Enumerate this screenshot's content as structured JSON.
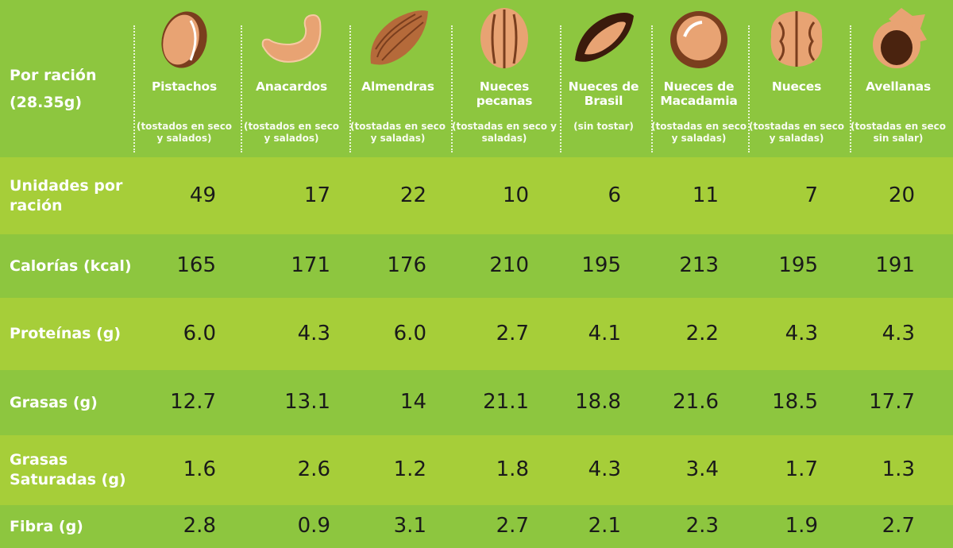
{
  "header": {
    "serving_label": "Por ración",
    "serving_size": "(28.35g)"
  },
  "nuts": [
    {
      "name": "Pistachos",
      "note": "(tostados en seco y salados)",
      "icon": "pistachio-icon"
    },
    {
      "name": "Anacardos",
      "note": "(tostados en seco y salados)",
      "icon": "cashew-icon"
    },
    {
      "name": "Almendras",
      "note": "(tostadas en seco y saladas)",
      "icon": "almond-icon"
    },
    {
      "name": "Nueces pecanas",
      "note": "(tostadas en seco y saladas)",
      "icon": "pecan-icon"
    },
    {
      "name": "Nueces de Brasil",
      "note": "(sin tostar)",
      "icon": "brazil-nut-icon"
    },
    {
      "name": "Nueces de Macadamia",
      "note": "(tostadas en seco y saladas)",
      "icon": "macadamia-icon"
    },
    {
      "name": "Nueces",
      "note": "(tostadas en seco y saladas)",
      "icon": "walnut-icon"
    },
    {
      "name": "Avellanas",
      "note": "(tostadas en seco sin salar)",
      "icon": "hazelnut-icon"
    }
  ],
  "rows": [
    {
      "label": "Unidades por ración",
      "values": [
        "49",
        "17",
        "22",
        "10",
        "6",
        "11",
        "7",
        "20"
      ]
    },
    {
      "label": "Calorías (kcal)",
      "values": [
        "165",
        "171",
        "176",
        "210",
        "195",
        "213",
        "195",
        "191"
      ]
    },
    {
      "label": "Proteínas (g)",
      "values": [
        "6.0",
        "4.3",
        "6.0",
        "2.7",
        "4.1",
        "2.2",
        "4.3",
        "4.3"
      ]
    },
    {
      "label": "Grasas (g)",
      "values": [
        "12.7",
        "13.1",
        "14",
        "21.1",
        "18.8",
        "21.6",
        "18.5",
        "17.7"
      ]
    },
    {
      "label": "Grasas Saturadas (g)",
      "values": [
        "1.6",
        "2.6",
        "1.2",
        "1.8",
        "4.3",
        "3.4",
        "1.7",
        "1.3"
      ]
    },
    {
      "label": "Fibra (g)",
      "values": [
        "2.8",
        "0.9",
        "3.1",
        "2.7",
        "2.1",
        "2.3",
        "1.9",
        "2.7"
      ]
    }
  ],
  "colors": {
    "dark_green": "#8dc63f",
    "light_green": "#a6ce39",
    "nut": "#e8a373",
    "shell": "#7a3e1e"
  }
}
